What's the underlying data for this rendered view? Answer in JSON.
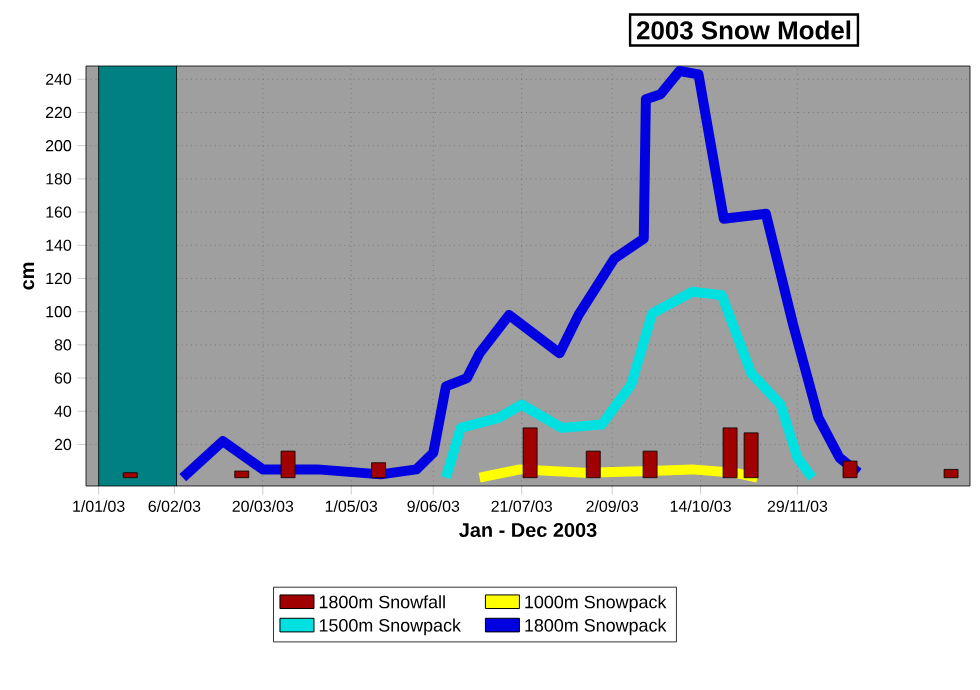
{
  "chart_data": {
    "type": "line",
    "title": "2003 Snow Model",
    "xlabel": "Jan - Dec 2003",
    "ylabel": "cm",
    "xlim": [
      "2002-12-26",
      "2004-02-19"
    ],
    "ylim": [
      -5,
      248
    ],
    "xticks": [
      {
        "value": "2003-01-01",
        "label": "1/01/03"
      },
      {
        "value": "2003-02-06",
        "label": "6/02/03"
      },
      {
        "value": "2003-03-20",
        "label": "20/03/03"
      },
      {
        "value": "2003-05-01",
        "label": "1/05/03"
      },
      {
        "value": "2003-06-09",
        "label": "9/06/03"
      },
      {
        "value": "2003-07-21",
        "label": "21/07/03"
      },
      {
        "value": "2003-09-02",
        "label": "2/09/03"
      },
      {
        "value": "2003-10-14",
        "label": "14/10/03"
      },
      {
        "value": "2003-11-29",
        "label": "29/11/03"
      }
    ],
    "yticks": [
      20,
      40,
      60,
      80,
      100,
      120,
      140,
      160,
      180,
      200,
      220,
      240
    ],
    "grid": true,
    "legend": "bottom",
    "bands": [
      {
        "axis": "x",
        "from": "2003-01-01",
        "to": "2003-02-07",
        "color": "#008080"
      }
    ],
    "series": [
      {
        "name": "1800m Snowfall",
        "type": "bar",
        "color": "#a00000",
        "x": [
          "2003-01-16",
          "2003-03-10",
          "2003-04-01",
          "2003-05-14",
          "2003-07-25",
          "2003-08-24",
          "2003-09-20",
          "2003-10-28",
          "2003-11-07",
          "2003-12-24",
          "2004-02-10"
        ],
        "values": [
          3,
          4,
          16,
          9,
          30,
          16,
          16,
          30,
          27,
          10,
          5
        ]
      },
      {
        "name": "1000m Snowpack",
        "color": "#ffff00",
        "x": [
          "2003-07-01",
          "2003-07-20",
          "2003-08-20",
          "2003-09-20",
          "2003-10-10",
          "2003-10-30",
          "2003-11-10"
        ],
        "values": [
          0,
          5,
          3,
          4,
          5,
          3,
          0
        ]
      },
      {
        "name": "1500m Snowpack",
        "color": "#00e0e0",
        "x": [
          "2003-06-15",
          "2003-06-22",
          "2003-07-10",
          "2003-07-21",
          "2003-08-09",
          "2003-08-28",
          "2003-09-11",
          "2003-09-21",
          "2003-10-10",
          "2003-10-24",
          "2003-11-07",
          "2003-11-21",
          "2003-11-29",
          "2003-12-06"
        ],
        "values": [
          0,
          30,
          36,
          44,
          30,
          32,
          56,
          99,
          112,
          110,
          63,
          44,
          12,
          0
        ]
      },
      {
        "name": "1800m Snowpack",
        "color": "#0000e0",
        "x": [
          "2003-02-10",
          "2003-03-01",
          "2003-03-20",
          "2003-04-15",
          "2003-05-15",
          "2003-06-01",
          "2003-06-09",
          "2003-06-15",
          "2003-06-25",
          "2003-07-01",
          "2003-07-15",
          "2003-08-08",
          "2003-08-17",
          "2003-09-03",
          "2003-09-17",
          "2003-09-18",
          "2003-09-25",
          "2003-10-04",
          "2003-10-13",
          "2003-10-25",
          "2003-11-14",
          "2003-11-27",
          "2003-12-09",
          "2003-12-19",
          "2003-12-28"
        ],
        "values": [
          0,
          22,
          5,
          5,
          2,
          5,
          15,
          55,
          60,
          75,
          98,
          75,
          98,
          132,
          144,
          228,
          231,
          245,
          243,
          156,
          159,
          92,
          36,
          12,
          3
        ]
      }
    ]
  }
}
